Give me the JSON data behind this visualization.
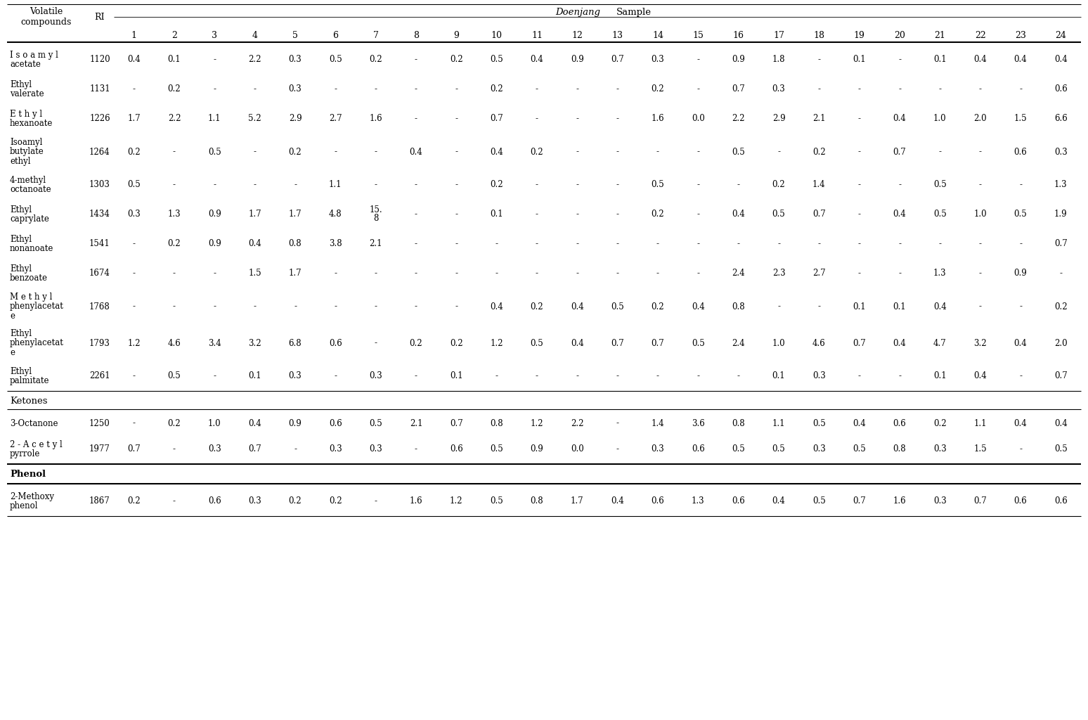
{
  "col_numbers": [
    "1",
    "2",
    "3",
    "4",
    "5",
    "6",
    "7",
    "8",
    "9",
    "10",
    "11",
    "12",
    "13",
    "14",
    "15",
    "16",
    "17",
    "18",
    "19",
    "20",
    "21",
    "22",
    "23",
    "24"
  ],
  "rows": [
    {
      "compound": "I s o a m y l\nacetate",
      "ri": "1120",
      "nlines": 2,
      "values": [
        "0.4",
        "0.1",
        "-",
        "2.2",
        "0.3",
        "0.5",
        "0.2",
        "-",
        "0.2",
        "0.5",
        "0.4",
        "0.9",
        "0.7",
        "0.3",
        "-",
        "0.9",
        "1.8",
        "-",
        "0.1",
        "-",
        "0.1",
        "0.4",
        "0.4",
        "0.4"
      ]
    },
    {
      "compound": "Ethyl\nvalerate",
      "ri": "1131",
      "nlines": 2,
      "values": [
        "-",
        "0.2",
        "-",
        "-",
        "0.3",
        "-",
        "-",
        "-",
        "-",
        "0.2",
        "-",
        "-",
        "-",
        "0.2",
        "-",
        "0.7",
        "0.3",
        "-",
        "-",
        "-",
        "-",
        "-",
        "-",
        "0.6"
      ]
    },
    {
      "compound": "E t h y l\nhexanoate",
      "ri": "1226",
      "nlines": 2,
      "values": [
        "1.7",
        "2.2",
        "1.1",
        "5.2",
        "2.9",
        "2.7",
        "1.6",
        "-",
        "-",
        "0.7",
        "-",
        "-",
        "-",
        "1.6",
        "0.0",
        "2.2",
        "2.9",
        "2.1",
        "-",
        "0.4",
        "1.0",
        "2.0",
        "1.5",
        "6.6"
      ]
    },
    {
      "compound": "Isoamyl\nbutylate\nethyl",
      "ri": "1264",
      "nlines": 3,
      "values": [
        "0.2",
        "-",
        "0.5",
        "-",
        "0.2",
        "-",
        "-",
        "0.4",
        "-",
        "0.4",
        "0.2",
        "-",
        "-",
        "-",
        "-",
        "0.5",
        "-",
        "0.2",
        "-",
        "0.7",
        "-",
        "-",
        "0.6",
        "0.3"
      ]
    },
    {
      "compound": "4-methyl\noctanoate",
      "ri": "1303",
      "nlines": 2,
      "values": [
        "0.5",
        "-",
        "-",
        "-",
        "-",
        "1.1",
        "-",
        "-",
        "-",
        "0.2",
        "-",
        "-",
        "-",
        "0.5",
        "-",
        "-",
        "0.2",
        "1.4",
        "-",
        "-",
        "0.5",
        "-",
        "-",
        "1.3"
      ]
    },
    {
      "compound": "Ethyl\ncaprylate",
      "ri": "1434",
      "nlines": 2,
      "values": [
        "0.3",
        "1.3",
        "0.9",
        "1.7",
        "1.7",
        "4.8",
        "15.\n8",
        "-",
        "-",
        "0.1",
        "-",
        "-",
        "-",
        "0.2",
        "-",
        "0.4",
        "0.5",
        "0.7",
        "-",
        "0.4",
        "0.5",
        "1.0",
        "0.5",
        "1.9"
      ]
    },
    {
      "compound": "Ethyl\nnonanoate",
      "ri": "1541",
      "nlines": 2,
      "values": [
        "-",
        "0.2",
        "0.9",
        "0.4",
        "0.8",
        "3.8",
        "2.1",
        "-",
        "-",
        "-",
        "-",
        "-",
        "-",
        "-",
        "-",
        "-",
        "-",
        "-",
        "-",
        "-",
        "-",
        "-",
        "-",
        "0.7"
      ]
    },
    {
      "compound": "Ethyl\nbenzoate",
      "ri": "1674",
      "nlines": 2,
      "values": [
        "-",
        "-",
        "-",
        "1.5",
        "1.7",
        "-",
        "-",
        "-",
        "-",
        "-",
        "-",
        "-",
        "-",
        "-",
        "-",
        "2.4",
        "2.3",
        "2.7",
        "-",
        "-",
        "1.3",
        "-",
        "0.9",
        "-"
      ]
    },
    {
      "compound": "M e t h y l\nphenylacetat\ne",
      "ri": "1768",
      "nlines": 3,
      "values": [
        "-",
        "-",
        "-",
        "-",
        "-",
        "-",
        "-",
        "-",
        "-",
        "0.4",
        "0.2",
        "0.4",
        "0.5",
        "0.2",
        "0.4",
        "0.8",
        "-",
        "-",
        "0.1",
        "0.1",
        "0.4",
        "-",
        "-",
        "0.2"
      ]
    },
    {
      "compound": "Ethyl\nphenylacetat\ne",
      "ri": "1793",
      "nlines": 3,
      "values": [
        "1.2",
        "4.6",
        "3.4",
        "3.2",
        "6.8",
        "0.6",
        "-",
        "0.2",
        "0.2",
        "1.2",
        "0.5",
        "0.4",
        "0.7",
        "0.7",
        "0.5",
        "2.4",
        "1.0",
        "4.6",
        "0.7",
        "0.4",
        "4.7",
        "3.2",
        "0.4",
        "2.0"
      ]
    },
    {
      "compound": "Ethyl\npalmitate",
      "ri": "2261",
      "nlines": 2,
      "values": [
        "-",
        "0.5",
        "-",
        "0.1",
        "0.3",
        "-",
        "0.3",
        "-",
        "0.1",
        "-",
        "-",
        "-",
        "-",
        "-",
        "-",
        "-",
        "0.1",
        "0.3",
        "-",
        "-",
        "0.1",
        "0.4",
        "-",
        "0.7"
      ]
    }
  ],
  "ketone_rows": [
    {
      "compound": "3-Octanone",
      "ri": "1250",
      "nlines": 1,
      "values": [
        "-",
        "0.2",
        "1.0",
        "0.4",
        "0.9",
        "0.6",
        "0.5",
        "2.1",
        "0.7",
        "0.8",
        "1.2",
        "2.2",
        "-",
        "1.4",
        "3.6",
        "0.8",
        "1.1",
        "0.5",
        "0.4",
        "0.6",
        "0.2",
        "1.1",
        "0.4",
        "0.4"
      ]
    },
    {
      "compound": "2 - A c e t y l\npyrrole",
      "ri": "1977",
      "nlines": 2,
      "values": [
        "0.7",
        "-",
        "0.3",
        "0.7",
        "-",
        "0.3",
        "0.3",
        "-",
        "0.6",
        "0.5",
        "0.9",
        "0.0",
        "-",
        "0.3",
        "0.6",
        "0.5",
        "0.5",
        "0.3",
        "0.5",
        "0.8",
        "0.3",
        "1.5",
        "-",
        "0.5"
      ]
    }
  ],
  "phenol_rows": [
    {
      "compound": "2-Methoxy\nphenol",
      "ri": "1867",
      "nlines": 2,
      "values": [
        "0.2",
        "-",
        "0.6",
        "0.3",
        "0.2",
        "0.2",
        "-",
        "1.6",
        "1.2",
        "0.5",
        "0.8",
        "1.7",
        "0.4",
        "0.6",
        "1.3",
        "0.6",
        "0.4",
        "0.5",
        "0.7",
        "1.6",
        "0.3",
        "0.7",
        "0.6",
        "0.6"
      ]
    }
  ]
}
